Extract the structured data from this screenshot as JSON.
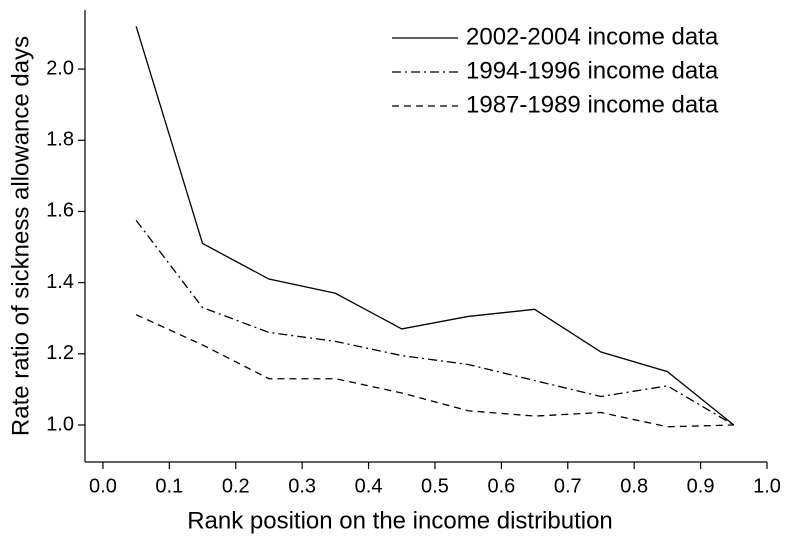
{
  "chart_data": {
    "type": "line",
    "xlabel": "Rank position on the income distribution",
    "ylabel": "Rate ratio of sickness allowance days",
    "x": [
      0.05,
      0.15,
      0.25,
      0.35,
      0.45,
      0.55,
      0.65,
      0.75,
      0.85,
      0.95
    ],
    "series": [
      {
        "name": "2002-2004 income data",
        "color": "#000000",
        "dash": "solid",
        "values": [
          2.12,
          1.51,
          1.41,
          1.37,
          1.27,
          1.305,
          1.325,
          1.205,
          1.15,
          1.0
        ]
      },
      {
        "name": "1994-1996 income data",
        "color": "#000000",
        "dash": "dashdot",
        "values": [
          1.575,
          1.33,
          1.26,
          1.235,
          1.195,
          1.17,
          1.125,
          1.08,
          1.11,
          1.0
        ]
      },
      {
        "name": "1987-1989 income data",
        "color": "#000000",
        "dash": "dashed",
        "values": [
          1.31,
          1.225,
          1.13,
          1.13,
          1.09,
          1.04,
          1.025,
          1.035,
          0.995,
          1.0
        ]
      }
    ],
    "xlim": [
      -0.027,
      1.0
    ],
    "ylim": [
      0.896,
      2.166
    ],
    "xticks": [
      {
        "value": 0,
        "label": "0.0"
      },
      0.1,
      0.2,
      0.3,
      0.4,
      0.5,
      0.6,
      0.7,
      0.8,
      0.9,
      {
        "value": 1,
        "label": "1.0"
      }
    ],
    "yticks": [
      {
        "value": 1,
        "label": "1.0"
      },
      1.2,
      1.4,
      1.6,
      1.8,
      {
        "value": 2,
        "label": "2.0"
      }
    ],
    "legend": "upper right"
  }
}
